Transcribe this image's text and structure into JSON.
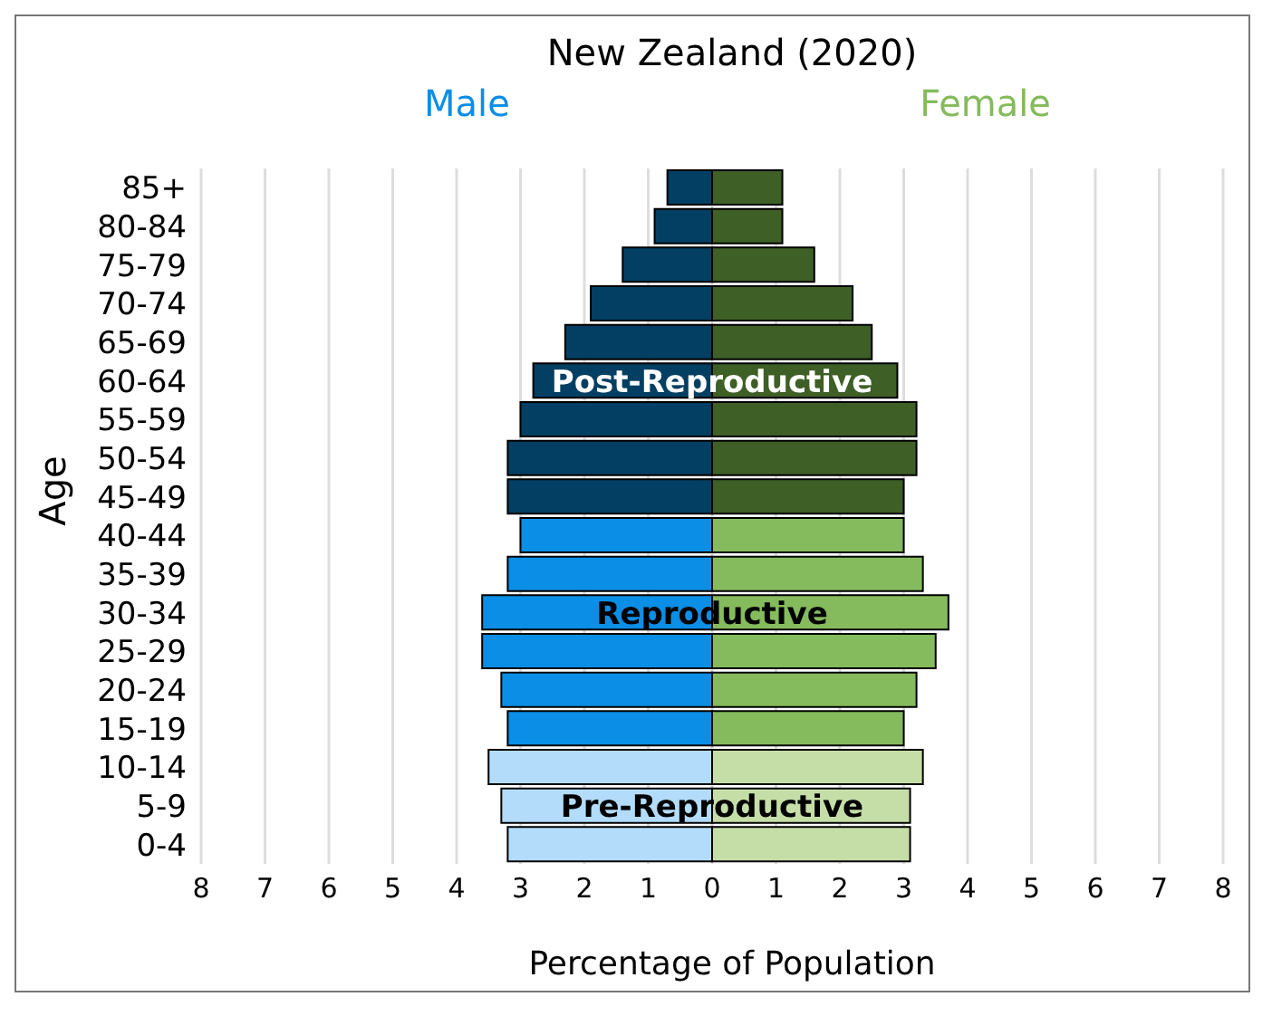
{
  "chart_data": {
    "type": "bar",
    "orientation": "horizontal",
    "title": "New Zealand (2020)",
    "xlabel": "Percentage of Population",
    "ylabel": "Age",
    "categories": [
      "85+",
      "80-84",
      "75-79",
      "70-74",
      "65-69",
      "60-64",
      "55-59",
      "50-54",
      "45-49",
      "40-44",
      "35-39",
      "30-34",
      "25-29",
      "20-24",
      "15-19",
      "10-14",
      "5-9",
      "0-4"
    ],
    "series": [
      {
        "name": "Male",
        "color": "#0a8ee6",
        "values": [
          -0.7,
          -0.9,
          -1.4,
          -1.9,
          -2.3,
          -2.8,
          -3.0,
          -3.2,
          -3.2,
          -3.0,
          -3.2,
          -3.6,
          -3.6,
          -3.3,
          -3.2,
          -3.5,
          -3.3,
          -3.2
        ],
        "colors": [
          "#033f63",
          "#033f63",
          "#033f63",
          "#033f63",
          "#033f63",
          "#033f63",
          "#033f63",
          "#033f63",
          "#033f63",
          "#0a8ee6",
          "#0a8ee6",
          "#0a8ee6",
          "#0a8ee6",
          "#0a8ee6",
          "#0a8ee6",
          "#b3dcfa",
          "#b3dcfa",
          "#b3dcfa"
        ]
      },
      {
        "name": "Female",
        "color": "#85bb5c",
        "values": [
          1.1,
          1.1,
          1.6,
          2.2,
          2.5,
          2.9,
          3.2,
          3.2,
          3.0,
          3.0,
          3.3,
          3.7,
          3.5,
          3.2,
          3.0,
          3.3,
          3.1,
          3.1
        ],
        "colors": [
          "#3e5f26",
          "#3e5f26",
          "#3e5f26",
          "#3e5f26",
          "#3e5f26",
          "#3e5f26",
          "#3e5f26",
          "#3e5f26",
          "#3e5f26",
          "#85bb5c",
          "#85bb5c",
          "#85bb5c",
          "#85bb5c",
          "#85bb5c",
          "#85bb5c",
          "#c5dea8",
          "#c5dea8",
          "#c5dea8"
        ]
      }
    ],
    "xlim": [
      -8,
      8
    ],
    "xticks": [
      {
        "value": -8,
        "label": "8"
      },
      {
        "value": -7,
        "label": "7"
      },
      {
        "value": -6,
        "label": "6"
      },
      {
        "value": -5,
        "label": "5"
      },
      {
        "value": -4,
        "label": "4"
      },
      {
        "value": -3,
        "label": "3"
      },
      {
        "value": -2,
        "label": "2"
      },
      {
        "value": -1,
        "label": "1"
      },
      0,
      1,
      2,
      3,
      4,
      5,
      6,
      7,
      8
    ],
    "grid": "x",
    "legend": "top",
    "stacked": true,
    "annotations": [
      {
        "text": "Post-Reproductive",
        "y": "60-64"
      },
      {
        "text": "Reproductive",
        "y": "30-34"
      },
      {
        "text": "Pre-Reproductive",
        "y": "5-9"
      }
    ]
  }
}
